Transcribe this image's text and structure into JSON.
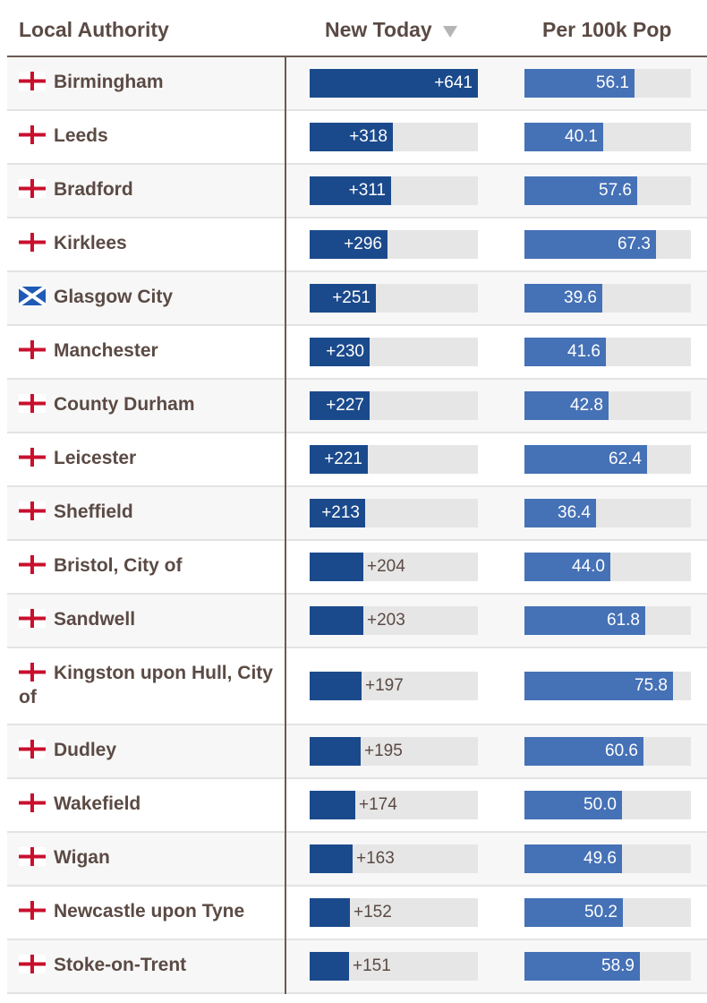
{
  "table": {
    "headers": {
      "authority": "Local Authority",
      "new_today": "New Today",
      "per_100k": "Per 100k Pop"
    },
    "sort_icon": "sort-descending-triangle-icon"
  },
  "chart_data": {
    "type": "table",
    "columns": [
      "Local Authority",
      "New Today",
      "Per 100k Pop"
    ],
    "sorted_by": "New Today",
    "sort_order": "descending",
    "new_today_max": 641,
    "per_100k_max": 85,
    "colors": {
      "new_today_bar": "#1b4a8c",
      "per_100k_bar": "#4571b6",
      "track": "#e6e6e6"
    },
    "rows": [
      {
        "name": "Birmingham",
        "flag": "england-flag-icon",
        "new_today": 641,
        "new_today_label": "+641",
        "per_100k": 56.1,
        "per_100k_label": "56.1"
      },
      {
        "name": "Leeds",
        "flag": "england-flag-icon",
        "new_today": 318,
        "new_today_label": "+318",
        "per_100k": 40.1,
        "per_100k_label": "40.1"
      },
      {
        "name": "Bradford",
        "flag": "england-flag-icon",
        "new_today": 311,
        "new_today_label": "+311",
        "per_100k": 57.6,
        "per_100k_label": "57.6"
      },
      {
        "name": "Kirklees",
        "flag": "england-flag-icon",
        "new_today": 296,
        "new_today_label": "+296",
        "per_100k": 67.3,
        "per_100k_label": "67.3"
      },
      {
        "name": "Glasgow City",
        "flag": "scotland-flag-icon",
        "new_today": 251,
        "new_today_label": "+251",
        "per_100k": 39.6,
        "per_100k_label": "39.6"
      },
      {
        "name": "Manchester",
        "flag": "england-flag-icon",
        "new_today": 230,
        "new_today_label": "+230",
        "per_100k": 41.6,
        "per_100k_label": "41.6"
      },
      {
        "name": "County Durham",
        "flag": "england-flag-icon",
        "new_today": 227,
        "new_today_label": "+227",
        "per_100k": 42.8,
        "per_100k_label": "42.8"
      },
      {
        "name": "Leicester",
        "flag": "england-flag-icon",
        "new_today": 221,
        "new_today_label": "+221",
        "per_100k": 62.4,
        "per_100k_label": "62.4"
      },
      {
        "name": "Sheffield",
        "flag": "england-flag-icon",
        "new_today": 213,
        "new_today_label": "+213",
        "per_100k": 36.4,
        "per_100k_label": "36.4"
      },
      {
        "name": "Bristol, City of",
        "flag": "england-flag-icon",
        "new_today": 204,
        "new_today_label": "+204",
        "per_100k": 44.0,
        "per_100k_label": "44.0"
      },
      {
        "name": "Sandwell",
        "flag": "england-flag-icon",
        "new_today": 203,
        "new_today_label": "+203",
        "per_100k": 61.8,
        "per_100k_label": "61.8"
      },
      {
        "name": "Kingston upon Hull, City of",
        "flag": "england-flag-icon",
        "new_today": 197,
        "new_today_label": "+197",
        "per_100k": 75.8,
        "per_100k_label": "75.8"
      },
      {
        "name": "Dudley",
        "flag": "england-flag-icon",
        "new_today": 195,
        "new_today_label": "+195",
        "per_100k": 60.6,
        "per_100k_label": "60.6"
      },
      {
        "name": "Wakefield",
        "flag": "england-flag-icon",
        "new_today": 174,
        "new_today_label": "+174",
        "per_100k": 50.0,
        "per_100k_label": "50.0"
      },
      {
        "name": "Wigan",
        "flag": "england-flag-icon",
        "new_today": 163,
        "new_today_label": "+163",
        "per_100k": 49.6,
        "per_100k_label": "49.6"
      },
      {
        "name": "Newcastle upon Tyne",
        "flag": "england-flag-icon",
        "new_today": 152,
        "new_today_label": "+152",
        "per_100k": 50.2,
        "per_100k_label": "50.2"
      },
      {
        "name": "Stoke-on-Trent",
        "flag": "england-flag-icon",
        "new_today": 151,
        "new_today_label": "+151",
        "per_100k": 58.9,
        "per_100k_label": "58.9"
      }
    ]
  }
}
